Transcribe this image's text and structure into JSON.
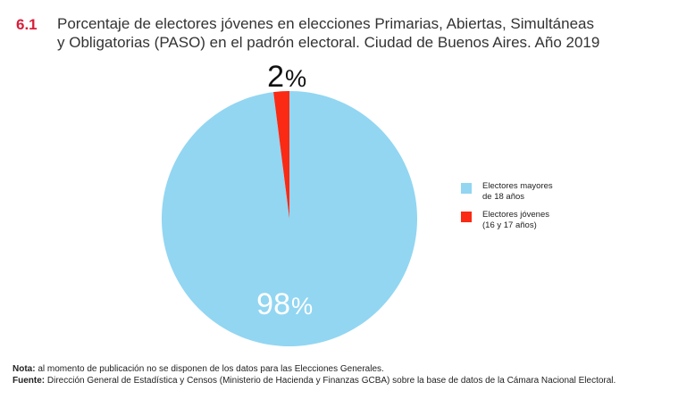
{
  "chart_number": "6.1",
  "chart_data": {
    "type": "pie",
    "title_line1": "Porcentaje de electores jóvenes en elecciones Primarias, Abiertas, Simultáneas",
    "title_line2": "y Obligatorias (PASO) en el padrón electoral. Ciudad de Buenos Aires. Año 2019",
    "slices": [
      {
        "label_line1": "Electores mayores",
        "label_line2": "de 18 años",
        "value": 98,
        "display_num": "98",
        "display_unit": "%",
        "color": "#92d6f2"
      },
      {
        "label_line1": "Electores jóvenes",
        "label_line2": "(16 y 17 años)",
        "value": 2,
        "display_num": "2",
        "display_unit": "%",
        "color": "#fa2a14"
      }
    ],
    "legend_position": "right"
  },
  "notes": {
    "nota_label": "Nota:",
    "nota_text": " al momento de publicación no se disponen de los datos para las Elecciones Generales.",
    "fuente_label": "Fuente:",
    "fuente_text": " Dirección General de Estadística y Censos (Ministerio de Hacienda y Finanzas GCBA) sobre la base de datos de la Cámara Nacional Electoral."
  }
}
